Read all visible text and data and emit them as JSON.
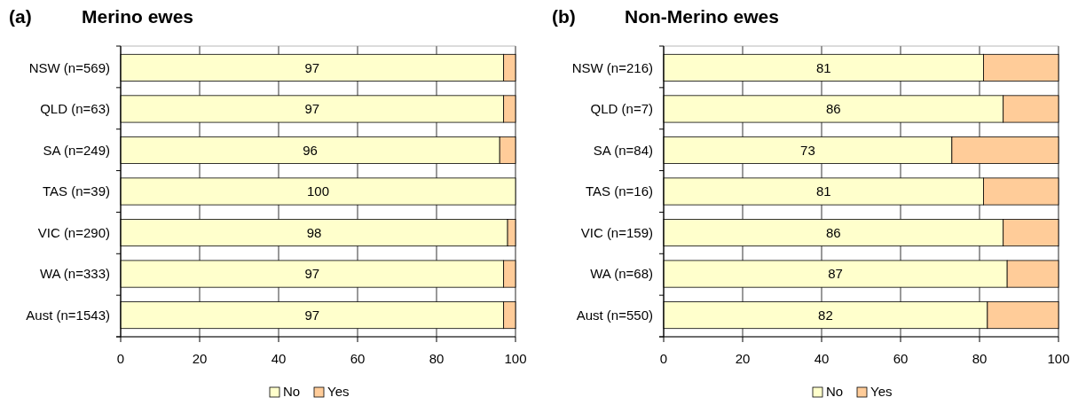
{
  "chart_data": [
    {
      "type": "bar",
      "orientation": "horizontal",
      "stacked": true,
      "title": "Merino ewes",
      "annotations": [
        "(a)"
      ],
      "categories": [
        "NSW (n=569)",
        "QLD (n=63)",
        "SA (n=249)",
        "TAS (n=39)",
        "VIC (n=290)",
        "WA (n=333)",
        "Aust (n=1543)"
      ],
      "series": [
        {
          "name": "No",
          "color": "#ffffcc",
          "values": [
            97,
            97,
            96,
            100,
            98,
            97,
            97
          ],
          "value_labels": [
            "97",
            "97",
            "96",
            "100",
            "98",
            "97",
            "97"
          ]
        },
        {
          "name": "Yes",
          "color": "#ffcc99",
          "values": [
            3,
            3,
            4,
            0,
            2,
            3,
            3
          ]
        }
      ],
      "xlim": [
        0,
        100
      ],
      "xticks": [
        0,
        20,
        40,
        60,
        80,
        100
      ],
      "grid": "x",
      "legend": "bottom"
    },
    {
      "type": "bar",
      "orientation": "horizontal",
      "stacked": true,
      "title": "Non-Merino ewes",
      "annotations": [
        "(b)"
      ],
      "categories": [
        "NSW (n=216)",
        "QLD (n=7)",
        "SA (n=84)",
        "TAS (n=16)",
        "VIC (n=159)",
        "WA (n=68)",
        "Aust (n=550)"
      ],
      "series": [
        {
          "name": "No",
          "color": "#ffffcc",
          "values": [
            81,
            86,
            73,
            81,
            86,
            87,
            82
          ],
          "value_labels": [
            "81",
            "86",
            "73",
            "81",
            "86",
            "87",
            "82"
          ]
        },
        {
          "name": "Yes",
          "color": "#ffcc99",
          "values": [
            19,
            14,
            27,
            19,
            14,
            13,
            18
          ]
        }
      ],
      "xlim": [
        0,
        100
      ],
      "xticks": [
        0,
        20,
        40,
        60,
        80,
        100
      ],
      "grid": "x",
      "legend": "bottom"
    }
  ]
}
